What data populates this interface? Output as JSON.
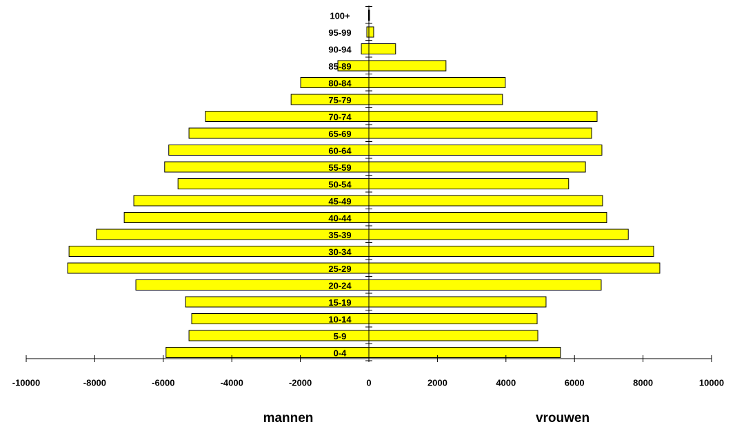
{
  "chart_data": {
    "type": "bar",
    "orientation": "horizontal",
    "categories": [
      "0-4",
      "5-9",
      "10-14",
      "15-19",
      "20-24",
      "25-29",
      "30-34",
      "35-39",
      "40-44",
      "45-49",
      "50-54",
      "55-59",
      "60-64",
      "65-69",
      "70-74",
      "75-79",
      "80-84",
      "85-89",
      "90-94",
      "95-99",
      "100+"
    ],
    "series": [
      {
        "name": "mannen",
        "color": "#ffff00",
        "values": [
          -5920,
          -5250,
          -5170,
          -5350,
          -6800,
          -8790,
          -8750,
          -7950,
          -7140,
          -6860,
          -5570,
          -5960,
          -5840,
          -5250,
          -4770,
          -2270,
          -1990,
          -905,
          -220,
          -60,
          -10
        ]
      },
      {
        "name": "vrouwen",
        "color": "#ffff00",
        "values": [
          5590,
          4930,
          4910,
          5170,
          6780,
          8490,
          8310,
          7570,
          6940,
          6820,
          5830,
          6320,
          6800,
          6500,
          6660,
          3900,
          3980,
          2250,
          780,
          140,
          20
        ]
      }
    ],
    "xlim": [
      -10000,
      10000
    ],
    "xticks": [
      -10000,
      -8000,
      -6000,
      -4000,
      -2000,
      0,
      2000,
      4000,
      6000,
      8000,
      10000
    ]
  }
}
